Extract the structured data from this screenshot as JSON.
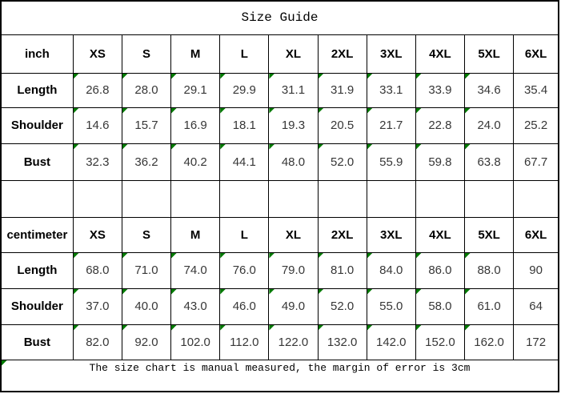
{
  "title": "Size Guide",
  "columns": [
    "XS",
    "S",
    "M",
    "L",
    "XL",
    "2XL",
    "3XL",
    "4XL",
    "5XL",
    "6XL"
  ],
  "sections": [
    {
      "unit": "inch",
      "rows": [
        {
          "label": "Length",
          "values": [
            "26.8",
            "28.0",
            "29.1",
            "29.9",
            "31.1",
            "31.9",
            "33.1",
            "33.9",
            "34.6",
            "35.4"
          ]
        },
        {
          "label": "Shoulder",
          "values": [
            "14.6",
            "15.7",
            "16.9",
            "18.1",
            "19.3",
            "20.5",
            "21.7",
            "22.8",
            "24.0",
            "25.2"
          ]
        },
        {
          "label": "Bust",
          "values": [
            "32.3",
            "36.2",
            "40.2",
            "44.1",
            "48.0",
            "52.0",
            "55.9",
            "59.8",
            "63.8",
            "67.7"
          ]
        }
      ]
    },
    {
      "unit": "centimeter",
      "rows": [
        {
          "label": "Length",
          "values": [
            "68.0",
            "71.0",
            "74.0",
            "76.0",
            "79.0",
            "81.0",
            "84.0",
            "86.0",
            "88.0",
            "90"
          ]
        },
        {
          "label": "Shoulder",
          "values": [
            "37.0",
            "40.0",
            "43.0",
            "46.0",
            "49.0",
            "52.0",
            "55.0",
            "58.0",
            "61.0",
            "64"
          ]
        },
        {
          "label": "Bust",
          "values": [
            "82.0",
            "92.0",
            "102.0",
            "112.0",
            "122.0",
            "132.0",
            "142.0",
            "152.0",
            "162.0",
            "172"
          ]
        }
      ]
    }
  ],
  "footer_note": "The size chart is manual measured, the margin of error is 3cm",
  "colors": {
    "flag_green": "#007a00",
    "border": "#000000",
    "number_text": "#373737"
  },
  "icons": {
    "cell_flag": "green-triangle"
  }
}
